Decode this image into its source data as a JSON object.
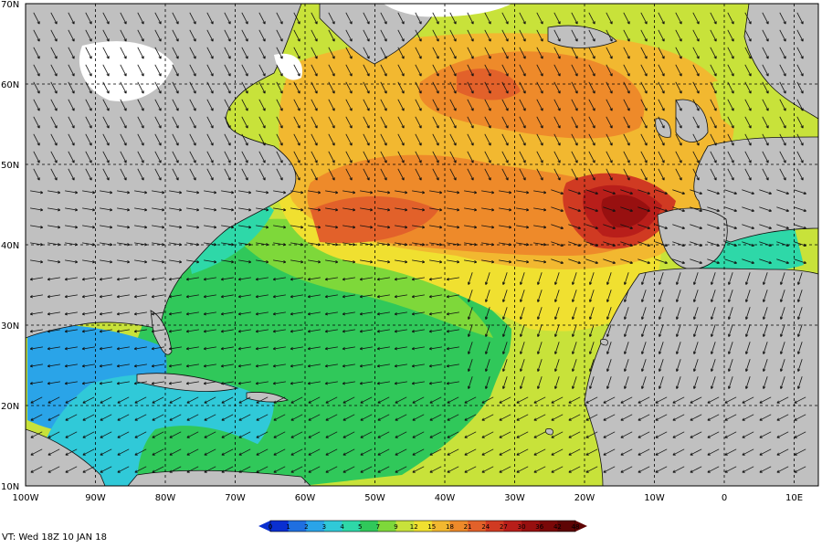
{
  "map": {
    "lon_labels": [
      "100W",
      "90W",
      "80W",
      "70W",
      "60W",
      "50W",
      "40W",
      "30W",
      "20W",
      "10W",
      "0",
      "10E"
    ],
    "lat_labels": [
      "70N",
      "60N",
      "50N",
      "40N",
      "30N",
      "20N",
      "10N"
    ],
    "valid_time": "VT: Wed 18Z 10 JAN 18"
  },
  "legend": {
    "ticks": [
      "0",
      "1",
      "2",
      "3",
      "4",
      "5",
      "7",
      "9",
      "12",
      "15",
      "18",
      "21",
      "24",
      "27",
      "30",
      "36",
      "42",
      "48"
    ],
    "colors": [
      "#0a2fd0",
      "#1f6fe0",
      "#2aa4e8",
      "#30c9d8",
      "#2ed8a8",
      "#30c85a",
      "#7ed83a",
      "#c8e23a",
      "#f0e030",
      "#f2b830",
      "#ee8a2a",
      "#e2612a",
      "#d03a22",
      "#b81e1a",
      "#981010",
      "#7a0808",
      "#5e0404"
    ]
  },
  "colors": {
    "land": "#c0c0c0",
    "ice": "#ffffff",
    "arrow": "#111111"
  }
}
